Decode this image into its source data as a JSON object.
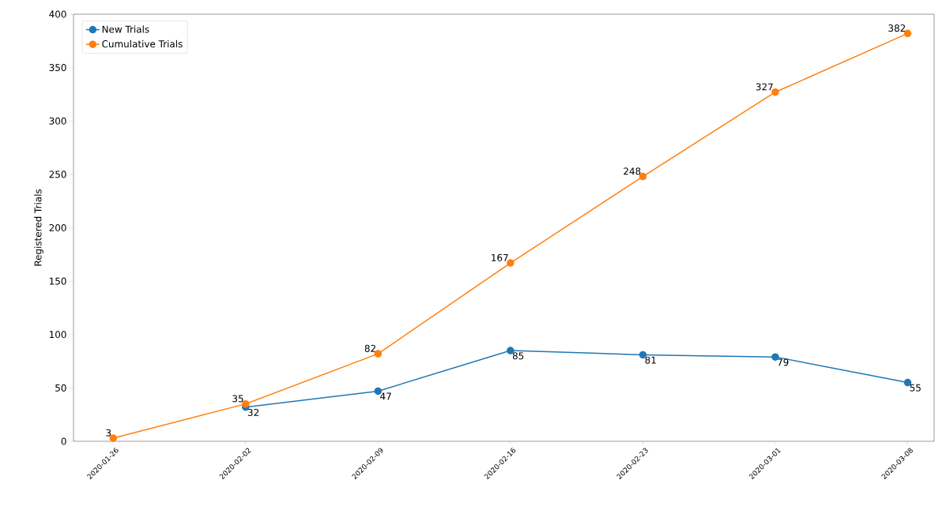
{
  "chart_data": {
    "type": "line",
    "ylabel": "Registered Trials",
    "categories": [
      "2020-01-26",
      "2020-02-02",
      "2020-02-09",
      "2020-02-16",
      "2020-02-23",
      "2020-03-01",
      "2020-03-08"
    ],
    "series": [
      {
        "name": "New Trials",
        "color": "#1f77b4",
        "values": [
          null,
          32,
          47,
          85,
          81,
          79,
          55
        ],
        "value_labels": [
          null,
          "32",
          "47",
          "85",
          "81",
          "79",
          "55"
        ]
      },
      {
        "name": "Cumulative Trials",
        "color": "#ff7f0e",
        "values": [
          3,
          35,
          82,
          167,
          248,
          327,
          382
        ],
        "value_labels": [
          "3",
          "35",
          "82",
          "167",
          "248",
          "327",
          "382"
        ]
      }
    ],
    "ylim": [
      0,
      400
    ],
    "yticks": [
      0,
      50,
      100,
      150,
      200,
      250,
      300,
      350,
      400
    ],
    "legend": "top left",
    "marker": "circle",
    "line_style": "solid",
    "grid": false
  }
}
